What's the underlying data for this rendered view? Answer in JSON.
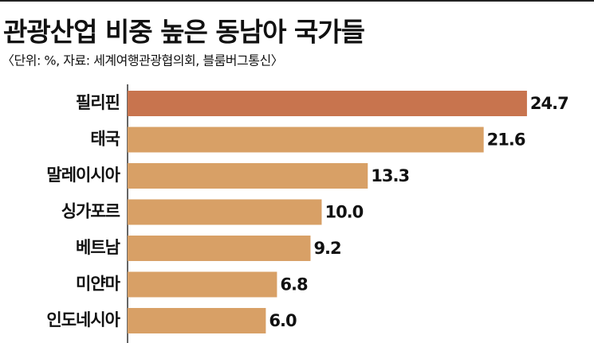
{
  "chart_data": {
    "type": "bar",
    "orientation": "horizontal",
    "title": "관광산업 비중 높은 동남아 국가들",
    "subtitle": "〈단위: %, 자료: 세계여행관광협의회, 블룸버그통신〉",
    "categories": [
      "필리핀",
      "태국",
      "말레이시아",
      "싱가포르",
      "베트남",
      "미얀마",
      "인도네시아"
    ],
    "values": [
      24.7,
      21.6,
      13.3,
      10.0,
      9.2,
      6.8,
      6.0
    ],
    "value_labels": [
      "24.7",
      "21.6",
      "13.3",
      "10.0",
      "9.2",
      "6.8",
      "6.0"
    ],
    "colors": [
      "#c8744e",
      "#d8a066",
      "#d8a066",
      "#d8a066",
      "#d8a066",
      "#d8a066",
      "#d8a066"
    ],
    "xlim": [
      -3.9,
      29.5
    ]
  }
}
